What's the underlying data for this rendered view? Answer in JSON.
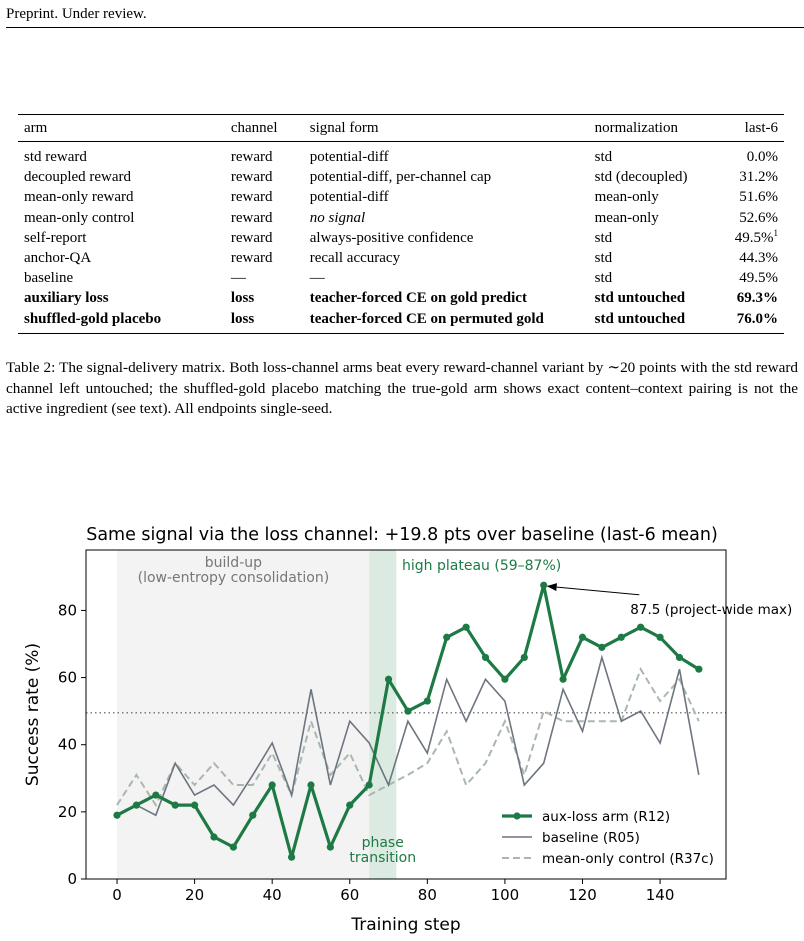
{
  "header": "Preprint. Under review.",
  "table": {
    "columns": [
      "arm",
      "channel",
      "signal form",
      "normalization",
      "last-6"
    ],
    "rows": [
      {
        "arm": "std reward",
        "channel": "reward",
        "signal": "potential-diff",
        "norm": "std",
        "last6": "0.0%",
        "sup": "",
        "bold": false,
        "italic": false
      },
      {
        "arm": "decoupled reward",
        "channel": "reward",
        "signal": "potential-diff, per-channel cap",
        "norm": "std (decoupled)",
        "last6": "31.2%",
        "sup": "",
        "bold": false,
        "italic": false
      },
      {
        "arm": "mean-only reward",
        "channel": "reward",
        "signal": "potential-diff",
        "norm": "mean-only",
        "last6": "51.6%",
        "sup": "",
        "bold": false,
        "italic": false
      },
      {
        "arm": "mean-only control",
        "channel": "reward",
        "signal": "no signal",
        "norm": "mean-only",
        "last6": "52.6%",
        "sup": "",
        "bold": false,
        "italic": true
      },
      {
        "arm": "self-report",
        "channel": "reward",
        "signal": "always-positive confidence",
        "norm": "std",
        "last6": "49.5%",
        "sup": "1",
        "bold": false,
        "italic": false
      },
      {
        "arm": "anchor-QA",
        "channel": "reward",
        "signal": "recall accuracy",
        "norm": "std",
        "last6": "44.3%",
        "sup": "",
        "bold": false,
        "italic": false
      },
      {
        "arm": "baseline",
        "channel": "—",
        "signal": "—",
        "norm": "std",
        "last6": "49.5%",
        "sup": "",
        "bold": false,
        "italic": false
      },
      {
        "arm": "auxiliary loss",
        "channel": "loss",
        "signal": "teacher-forced CE on gold predict",
        "norm": "std untouched",
        "last6": "69.3%",
        "sup": "",
        "bold": true,
        "italic": false
      },
      {
        "arm": "shuffled-gold placebo",
        "channel": "loss",
        "signal": "teacher-forced CE on permuted gold",
        "norm": "std untouched",
        "last6": "76.0%",
        "sup": "",
        "bold": true,
        "italic": false
      }
    ]
  },
  "caption": "Table 2: The signal-delivery matrix. Both loss-channel arms beat every reward-channel variant by ∼20 points with the std reward channel left untouched; the shuffled-gold placebo matching the true-gold arm shows exact content–context pairing is not the active ingredient (see text). All endpoints single-seed.",
  "chart_data": {
    "type": "line",
    "title": "Same signal via the loss channel: +19.8 pts over baseline (last-6 mean)",
    "xlabel": "Training step",
    "ylabel": "Success rate (%)",
    "xlim": [
      -8,
      157
    ],
    "ylim": [
      0,
      98
    ],
    "xticks": [
      0,
      20,
      40,
      60,
      80,
      100,
      120,
      140
    ],
    "yticks": [
      0,
      20,
      40,
      60,
      80
    ],
    "baseline_ref": 49.5,
    "regions": [
      {
        "label": "build-up\n(low-entropy consolidation)",
        "from": 0,
        "to": 65,
        "color": "#f3f3f3"
      },
      {
        "label": "phase\ntransition",
        "from": 65,
        "to": 72,
        "color": "#dcebe2"
      }
    ],
    "annotations": [
      {
        "text": "high plateau (59–87%)",
        "x": 94,
        "y": 92,
        "color": "#1e7a45"
      },
      {
        "text": "87.5 (project-wide max)",
        "x": 130,
        "y": 80.5,
        "arrow_to": [
          110,
          87.5
        ]
      }
    ],
    "legend": "lower-right",
    "series": [
      {
        "name": "aux-loss arm (R12)",
        "style": "solid-markers",
        "color": "#1e7a45",
        "x": [
          0,
          5,
          10,
          15,
          20,
          25,
          30,
          35,
          40,
          45,
          50,
          55,
          60,
          65,
          70,
          75,
          80,
          85,
          90,
          95,
          100,
          105,
          110,
          115,
          120,
          125,
          130,
          135,
          140,
          145,
          150
        ],
        "y": [
          19,
          22,
          25,
          22,
          22,
          12.5,
          9.5,
          19,
          28,
          6.5,
          28,
          9.5,
          22,
          28,
          59.5,
          50,
          53,
          72,
          75,
          66,
          59.5,
          66,
          87.5,
          59.5,
          72,
          69,
          72,
          75,
          72,
          66,
          62.5
        ]
      },
      {
        "name": "baseline (R05)",
        "style": "solid",
        "color": "#6d7580",
        "x": [
          0,
          5,
          10,
          15,
          20,
          25,
          30,
          35,
          40,
          45,
          50,
          55,
          60,
          65,
          70,
          75,
          80,
          85,
          90,
          95,
          100,
          105,
          110,
          115,
          120,
          125,
          130,
          135,
          140,
          145,
          150
        ],
        "y": [
          19,
          22,
          19,
          34.5,
          25,
          28,
          22,
          31,
          40.5,
          25,
          56.5,
          28,
          47,
          40.5,
          28,
          47,
          37.5,
          59.5,
          47,
          59.5,
          53,
          28,
          34.5,
          56.5,
          44,
          66,
          47,
          50,
          40.5,
          62.5,
          31
        ]
      },
      {
        "name": "mean-only control (R37c)",
        "style": "dashed",
        "color": "#a9b8ae",
        "x": [
          0,
          5,
          10,
          15,
          20,
          25,
          30,
          35,
          40,
          45,
          50,
          55,
          60,
          65,
          70,
          75,
          80,
          85,
          90,
          95,
          100,
          105,
          110,
          115,
          120,
          125,
          130,
          135,
          140,
          145,
          150
        ],
        "y": [
          22,
          31,
          22,
          34.5,
          28,
          34.5,
          28,
          28,
          37.5,
          25,
          47,
          31,
          37.5,
          25,
          28,
          31,
          34.5,
          44,
          28,
          34.5,
          47,
          31,
          50,
          47,
          47,
          47,
          47,
          62.5,
          53,
          59.5,
          47
        ]
      }
    ]
  }
}
